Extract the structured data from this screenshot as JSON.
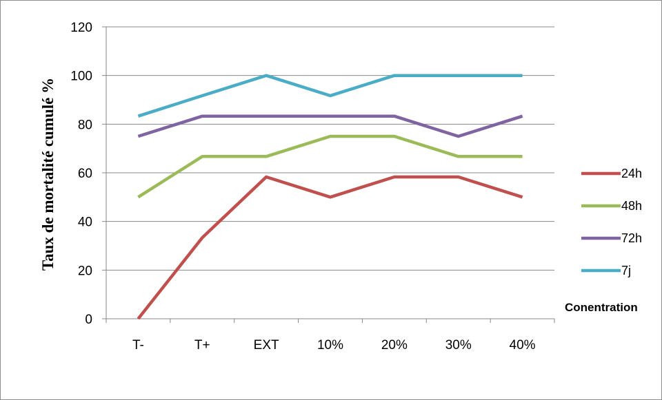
{
  "chart_data": {
    "type": "line",
    "title": "",
    "ylabel": "Taux de mortalité cumulé %",
    "xlabel": "Conentration",
    "categories": [
      "T-",
      "T+",
      "EXT",
      "10%",
      "20%",
      "30%",
      "40%"
    ],
    "ylim": [
      0,
      120
    ],
    "yticks": [
      0,
      20,
      40,
      60,
      80,
      100,
      120
    ],
    "grid": "horizontal",
    "legend_position": "right",
    "series": [
      {
        "name": "24h",
        "color": "#c0504d",
        "values": [
          0,
          33.3,
          58.3,
          50,
          58.3,
          58.3,
          50
        ]
      },
      {
        "name": "48h",
        "color": "#9bbb59",
        "values": [
          50,
          66.7,
          66.7,
          75,
          75,
          66.7,
          66.7
        ]
      },
      {
        "name": "72h",
        "color": "#8064a2",
        "values": [
          75,
          83.3,
          83.3,
          83.3,
          83.3,
          75,
          83.3
        ]
      },
      {
        "name": "7j",
        "color": "#4bacc6",
        "values": [
          83.3,
          91.7,
          100,
          91.7,
          100,
          100,
          100
        ]
      }
    ]
  }
}
